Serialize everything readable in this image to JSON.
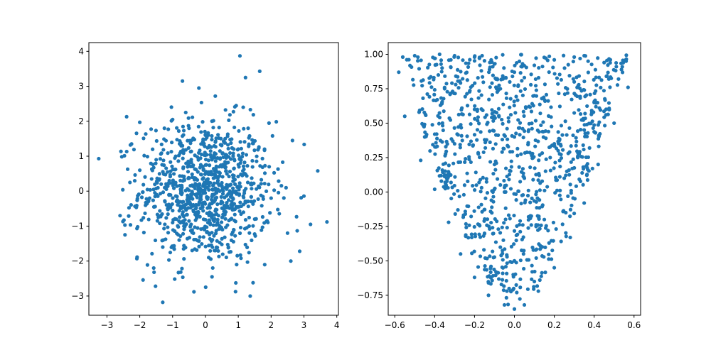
{
  "chart_data": [
    {
      "type": "scatter",
      "title": "",
      "xlabel": "",
      "ylabel": "",
      "xlim": [
        -3.55,
        4.05
      ],
      "ylim": [
        -3.55,
        4.25
      ],
      "xticks": [
        -3,
        -2,
        -1,
        0,
        1,
        2,
        3,
        4
      ],
      "yticks": [
        -3,
        -2,
        -1,
        0,
        1,
        2,
        3,
        4
      ],
      "xtick_labels": [
        "−3",
        "−2",
        "−1",
        "0",
        "1",
        "2",
        "3",
        "4"
      ],
      "ytick_labels": [
        "−3",
        "−2",
        "−1",
        "0",
        "1",
        "2",
        "3",
        "4"
      ],
      "grid": false,
      "color": "#1f77b4",
      "distribution": "approximately bivariate standard normal, about 1000 points centred near (0, 0)",
      "points": [
        [
          -3.25,
          0.93
        ],
        [
          -2.4,
          2.13
        ],
        [
          -2.25,
          1.35
        ],
        [
          -2.0,
          1.97
        ],
        [
          -1.9,
          -2.54
        ],
        [
          -1.52,
          -2.72
        ],
        [
          -1.3,
          -3.18
        ],
        [
          -1.25,
          1.8
        ],
        [
          -1.0,
          2.05
        ],
        [
          -0.7,
          3.15
        ],
        [
          -0.6,
          2.25
        ],
        [
          -0.2,
          2.95
        ],
        [
          0.3,
          2.72
        ],
        [
          1.05,
          3.87
        ],
        [
          1.22,
          3.25
        ],
        [
          1.15,
          2.4
        ],
        [
          1.45,
          -2.62
        ],
        [
          0.95,
          -2.1
        ],
        [
          2.65,
          1.45
        ],
        [
          3.2,
          -0.95
        ],
        [
          3.42,
          0.58
        ],
        [
          3.7,
          -0.88
        ],
        [
          2.87,
          -1.72
        ],
        [
          2.6,
          -2.0
        ],
        [
          2.5,
          -1.2
        ],
        [
          -2.6,
          -0.7
        ],
        [
          -2.45,
          -1.25
        ],
        [
          -2.3,
          0.25
        ],
        [
          -0.35,
          -2.88
        ],
        [
          0.2,
          -2.45
        ],
        [
          0.05,
          0.1
        ],
        [
          0.3,
          -0.2
        ],
        [
          -0.4,
          0.4
        ],
        [
          0.5,
          0.7
        ],
        [
          -0.6,
          -0.5
        ],
        [
          0.8,
          -0.3
        ],
        [
          -0.2,
          1.1
        ],
        [
          0.1,
          -1.2
        ],
        [
          1.2,
          0.5
        ],
        [
          -1.1,
          0.3
        ],
        [
          0.6,
          1.5
        ],
        [
          -0.8,
          -1.4
        ],
        [
          1.5,
          -0.8
        ],
        [
          -1.5,
          0.9
        ],
        [
          0.4,
          -0.7
        ],
        [
          -0.3,
          -0.1
        ],
        [
          0.9,
          0.2
        ],
        [
          -0.7,
          1.3
        ],
        [
          0.2,
          0.9
        ],
        [
          -1.0,
          -0.9
        ],
        [
          1.8,
          1.2
        ],
        [
          -1.7,
          -0.2
        ],
        [
          0.7,
          -1.6
        ],
        [
          -0.5,
          1.8
        ],
        [
          1.3,
          1.8
        ],
        [
          -1.3,
          -1.6
        ],
        [
          2.0,
          -0.2
        ],
        [
          -2.0,
          0.6
        ],
        [
          0.0,
          1.6
        ],
        [
          0.1,
          -1.9
        ]
      ]
    },
    {
      "type": "scatter",
      "title": "",
      "xlabel": "",
      "ylabel": "",
      "xlim": [
        -0.633,
        0.633
      ],
      "ylim": [
        -0.895,
        1.085
      ],
      "xticks": [
        -0.6,
        -0.4,
        -0.2,
        0.0,
        0.2,
        0.4,
        0.6
      ],
      "yticks": [
        -0.75,
        -0.5,
        -0.25,
        0.0,
        0.25,
        0.5,
        0.75,
        1.0
      ],
      "xtick_labels": [
        "−0.6",
        "−0.4",
        "−0.2",
        "0.0",
        "0.2",
        "0.4",
        "0.6"
      ],
      "ytick_labels": [
        "−0.75",
        "−0.50",
        "−0.25",
        "0.00",
        "0.25",
        "0.50",
        "0.75",
        "1.00"
      ],
      "grid": false,
      "color": "#1f77b4",
      "distribution": "about 1000 points roughly uniform inside a U / cup shaped region with bottom near y = -0.85 at x = 0 and top edge at y = 1.0 between x = -0.58 and x = 0.58",
      "points": [
        [
          -0.58,
          0.87
        ],
        [
          -0.56,
          0.98
        ],
        [
          -0.5,
          0.99
        ],
        [
          -0.4,
          0.97
        ],
        [
          -0.3,
          0.99
        ],
        [
          -0.2,
          0.98
        ],
        [
          -0.1,
          0.93
        ],
        [
          0.0,
          0.87
        ],
        [
          0.1,
          0.92
        ],
        [
          0.2,
          0.96
        ],
        [
          0.3,
          0.98
        ],
        [
          0.35,
          0.99
        ],
        [
          0.45,
          0.94
        ],
        [
          0.56,
          0.95
        ],
        [
          0.57,
          0.76
        ],
        [
          -0.47,
          0.23
        ],
        [
          -0.4,
          0.02
        ],
        [
          -0.33,
          -0.22
        ],
        [
          -0.27,
          -0.45
        ],
        [
          -0.2,
          -0.62
        ],
        [
          -0.13,
          -0.75
        ],
        [
          -0.05,
          -0.82
        ],
        [
          0.0,
          -0.85
        ],
        [
          0.05,
          -0.82
        ],
        [
          0.12,
          -0.72
        ],
        [
          0.2,
          -0.55
        ],
        [
          0.28,
          -0.33
        ],
        [
          0.35,
          -0.08
        ],
        [
          0.42,
          0.2
        ],
        [
          0.5,
          0.5
        ],
        [
          -0.55,
          0.55
        ],
        [
          -0.45,
          0.4
        ],
        [
          -0.3,
          0.35
        ],
        [
          -0.1,
          0.2
        ],
        [
          0.05,
          0.1
        ],
        [
          0.2,
          0.35
        ],
        [
          0.35,
          0.45
        ],
        [
          -0.2,
          0.6
        ],
        [
          0.1,
          0.7
        ],
        [
          0.3,
          0.8
        ],
        [
          -0.15,
          -0.3
        ],
        [
          0.0,
          -0.5
        ],
        [
          0.15,
          -0.2
        ],
        [
          -0.05,
          0.0
        ],
        [
          0.1,
          -0.65
        ],
        [
          -0.25,
          0.05
        ],
        [
          0.25,
          0.1
        ],
        [
          -0.35,
          0.75
        ],
        [
          0.4,
          0.65
        ],
        [
          0.0,
          0.4
        ]
      ]
    }
  ]
}
